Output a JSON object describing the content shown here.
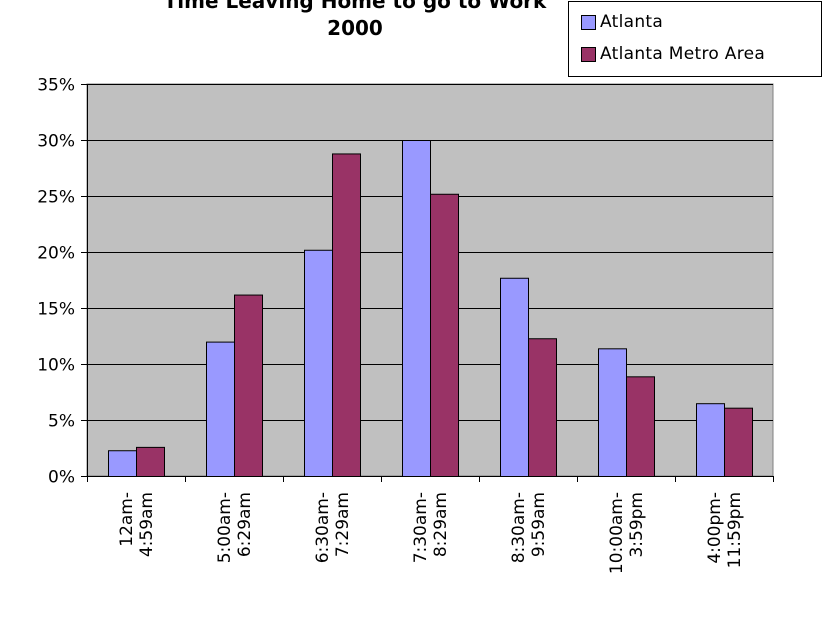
{
  "chart_data": {
    "type": "bar",
    "title_lines": [
      "Time Leaving Home to go to Work",
      "2000"
    ],
    "xlabel": "",
    "ylabel": "",
    "categories": [
      [
        "12am-",
        "4:59am"
      ],
      [
        "5:00am-",
        "6:29am"
      ],
      [
        "6:30am-",
        "7:29am"
      ],
      [
        "7:30am-",
        "8:29am"
      ],
      [
        "8:30am-",
        "9:59am"
      ],
      [
        "10:00am-",
        "3:59pm"
      ],
      [
        "4:00pm-",
        "11:59pm"
      ]
    ],
    "series": [
      {
        "name": "Atlanta",
        "color": "#9999ff",
        "values": [
          2.3,
          12.0,
          20.2,
          30.0,
          17.7,
          11.4,
          6.5
        ]
      },
      {
        "name": "Atlanta Metro Area",
        "color": "#993366",
        "values": [
          2.6,
          16.2,
          28.8,
          25.2,
          12.3,
          8.9,
          6.1
        ]
      }
    ],
    "ylim": [
      0,
      35
    ],
    "yticks": [
      0,
      5,
      10,
      15,
      20,
      25,
      30,
      35
    ],
    "ytick_suffix": "%",
    "grid": true,
    "plot_background": "#c0c0c0",
    "legend_position": "top-right"
  }
}
